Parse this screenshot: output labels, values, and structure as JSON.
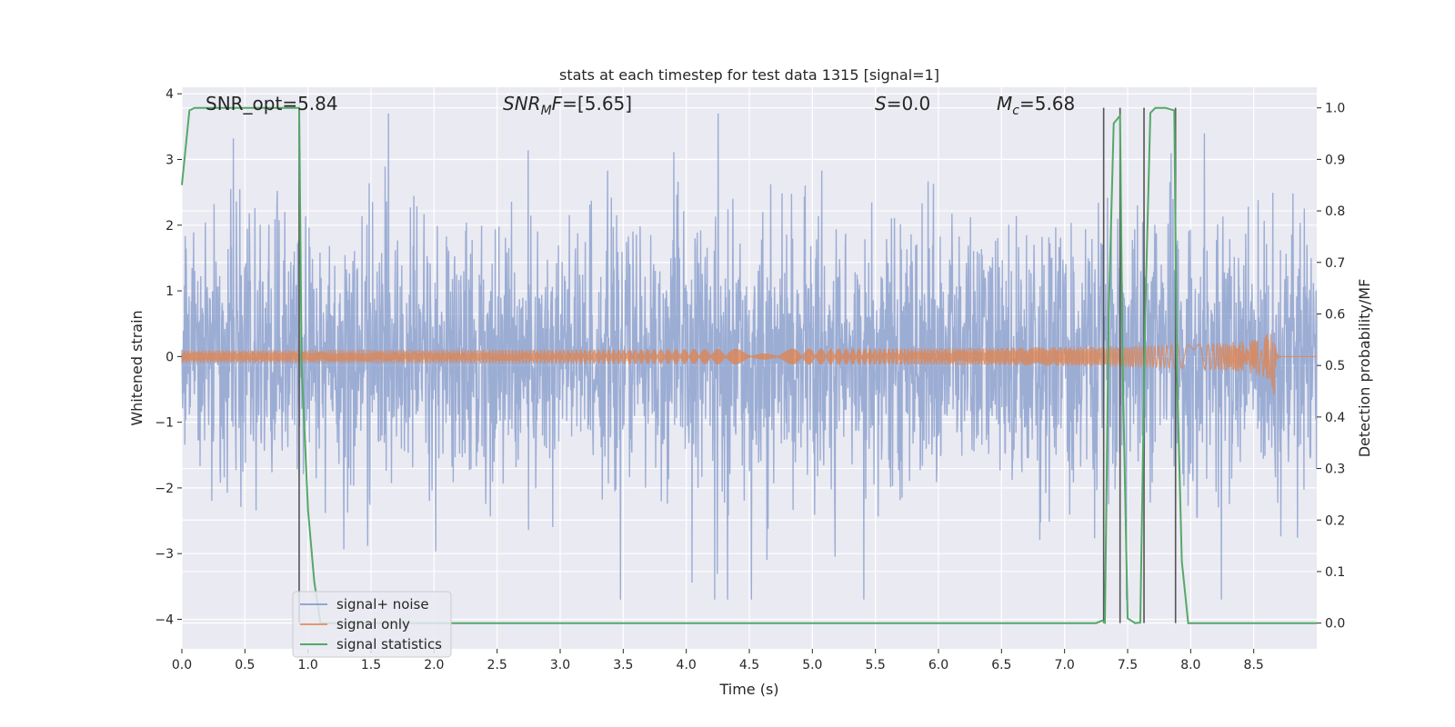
{
  "chart_data": {
    "type": "line",
    "title": "stats at each timestep for test data 1315 [signal=1]",
    "xlabel": "Time (s)",
    "ylabel": "Whitened strain",
    "y2label": "Detection probability/MF",
    "xlim": [
      0,
      9.0
    ],
    "ylim": [
      -4.45,
      4.1
    ],
    "y2lim": [
      -0.05,
      1.04
    ],
    "x_ticks": [
      "0.0",
      "0.5",
      "1.0",
      "1.5",
      "2.0",
      "2.5",
      "3.0",
      "3.5",
      "4.0",
      "4.5",
      "5.0",
      "5.5",
      "6.0",
      "6.5",
      "7.0",
      "7.5",
      "8.0",
      "8.5"
    ],
    "x_tick_values": [
      0,
      0.5,
      1.0,
      1.5,
      2.0,
      2.5,
      3.0,
      3.5,
      4.0,
      4.5,
      5.0,
      5.5,
      6.0,
      6.5,
      7.0,
      7.5,
      8.0,
      8.5
    ],
    "y_ticks": [
      "4",
      "3",
      "2",
      "1",
      "0",
      "−1",
      "−2",
      "−3",
      "−4"
    ],
    "y_tick_values": [
      4,
      3,
      2,
      1,
      0,
      -1,
      -2,
      -3,
      -4
    ],
    "y2_ticks": [
      "1.0",
      "0.9",
      "0.8",
      "0.7",
      "0.6",
      "0.5",
      "0.4",
      "0.3",
      "0.2",
      "0.1",
      "0.0"
    ],
    "y2_tick_values": [
      1.0,
      0.9,
      0.8,
      0.7,
      0.6,
      0.5,
      0.4,
      0.3,
      0.2,
      0.1,
      0.0
    ],
    "grid": true,
    "legend_position": "lower-left",
    "annotations": [
      {
        "id": "snr-opt",
        "text": "SNR_opt=5.84"
      },
      {
        "id": "snr-mf",
        "text": "SNR_MF=[5.65]"
      },
      {
        "id": "s-val",
        "text": "S=0.0"
      },
      {
        "id": "mc-val",
        "text": "Mc=5.68"
      }
    ],
    "series": [
      {
        "name": "signal+ noise",
        "color": "#7b93c8",
        "axis": "left",
        "kind": "noise",
        "amplitude_typical": 1.4,
        "amplitude_peak": 3.7,
        "x_range": [
          0,
          9.0
        ]
      },
      {
        "name": "signal only",
        "color": "#dd8452",
        "axis": "left",
        "kind": "chirp",
        "start_x": 0.0,
        "merger_x": 8.66,
        "ringdown_end_x": 9.0,
        "peak_amplitude": 0.7
      },
      {
        "name": "signal statistics",
        "color": "#55a868",
        "axis": "right",
        "kind": "step",
        "x": [
          0.0,
          0.06,
          0.1,
          0.3,
          0.5,
          0.93,
          0.95,
          1.0,
          1.05,
          1.1,
          7.25,
          7.3,
          7.32,
          7.35,
          7.39,
          7.44,
          7.46,
          7.5,
          7.56,
          7.6,
          7.64,
          7.68,
          7.72,
          7.8,
          7.87,
          7.89,
          7.93,
          7.98,
          8.5,
          9.0
        ],
        "y": [
          0.85,
          0.995,
          1.0,
          1.0,
          1.0,
          1.0,
          0.5,
          0.22,
          0.08,
          0.0,
          0.0,
          0.005,
          0.001,
          0.6,
          0.97,
          0.985,
          0.5,
          0.009,
          0.0,
          0.001,
          0.6,
          0.99,
          1.0,
          1.0,
          0.995,
          0.5,
          0.12,
          0.0,
          0.0,
          0.0
        ]
      }
    ],
    "vertical_lines": [
      0.93,
      7.31,
      7.44,
      7.63,
      7.88
    ],
    "vertical_line_color": "#555555"
  }
}
